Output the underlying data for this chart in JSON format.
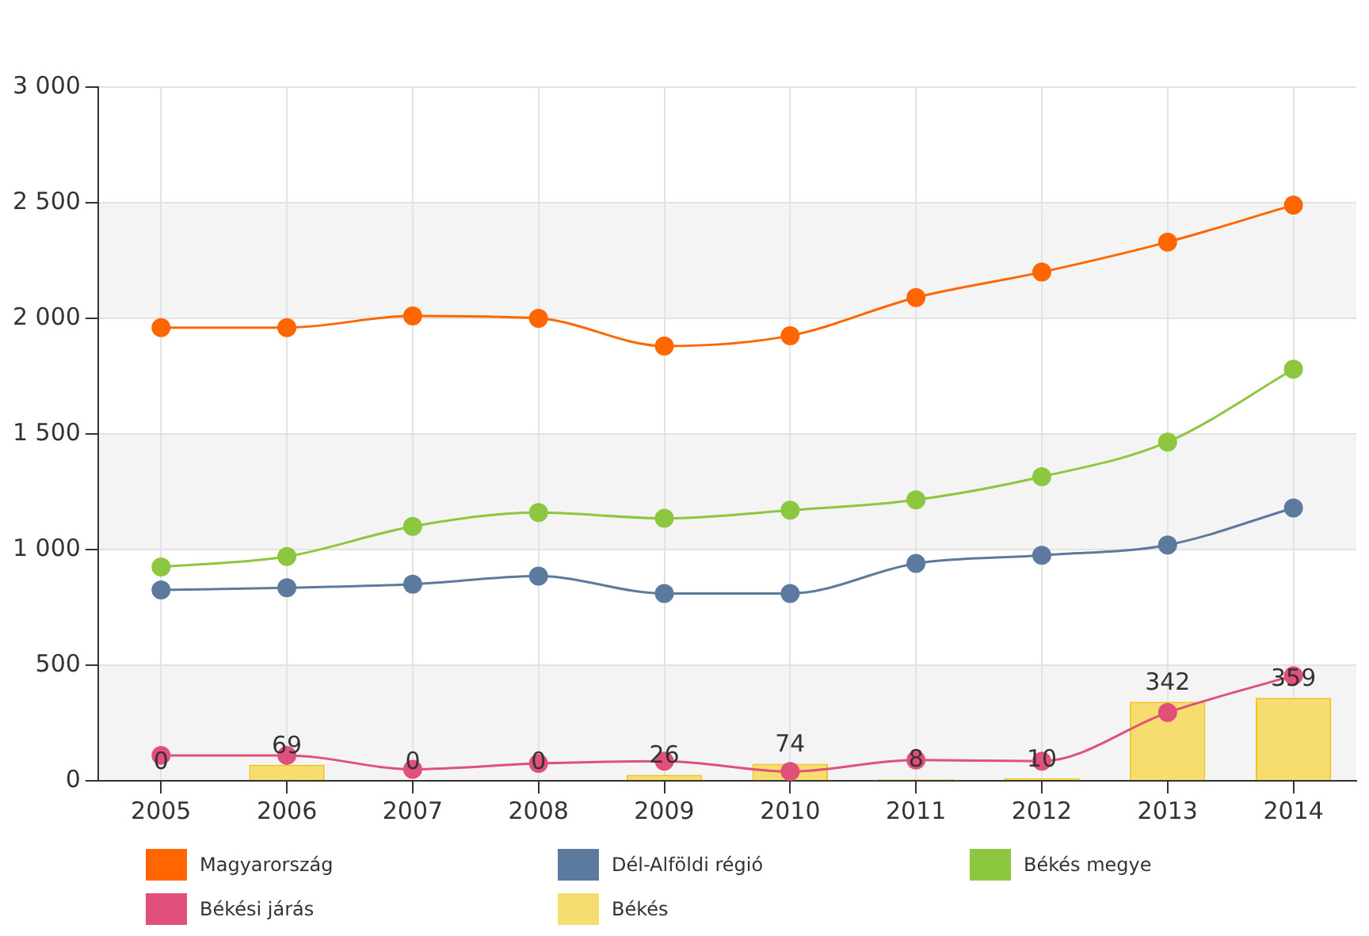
{
  "chart_data": {
    "type": "line",
    "categories": [
      "2005",
      "2006",
      "2007",
      "2008",
      "2009",
      "2010",
      "2011",
      "2012",
      "2013",
      "2014"
    ],
    "series": [
      {
        "name": "Magyarország",
        "color": "#ff6600",
        "values": [
          1960,
          1960,
          2010,
          2000,
          1880,
          1925,
          2090,
          2200,
          2330,
          2490
        ]
      },
      {
        "name": "Dél-Alföldi régió",
        "color": "#5b7a9e",
        "values": [
          825,
          835,
          850,
          885,
          810,
          810,
          940,
          975,
          1020,
          1180
        ]
      },
      {
        "name": "Békés megye",
        "color": "#8dc63f",
        "values": [
          925,
          970,
          1100,
          1160,
          1135,
          1170,
          1215,
          1315,
          1465,
          1780
        ]
      },
      {
        "name": "Békési járás",
        "color": "#e0507a",
        "values": [
          110,
          110,
          50,
          75,
          85,
          40,
          90,
          85,
          295,
          455
        ]
      },
      {
        "name": "Békés",
        "type": "bar",
        "color": "#f7dc6f",
        "values": [
          0,
          69,
          0,
          0,
          26,
          74,
          8,
          10,
          342,
          359
        ],
        "value_labels": [
          "0",
          "69",
          "0",
          "0",
          "26",
          "74",
          "8",
          "10",
          "342",
          "359"
        ]
      }
    ],
    "ylim": [
      0,
      3000
    ],
    "yticks": [
      0,
      500,
      {
        "value": 1000,
        "label": "1 000"
      },
      {
        "value": 1500,
        "label": "1 500"
      },
      {
        "value": 2000,
        "label": "2 000"
      },
      {
        "value": 2500,
        "label": "2 500"
      },
      {
        "value": 3000,
        "label": "3 000"
      }
    ],
    "grid": true,
    "legend": "bottom",
    "marker": "circle",
    "line_style": "solid"
  }
}
